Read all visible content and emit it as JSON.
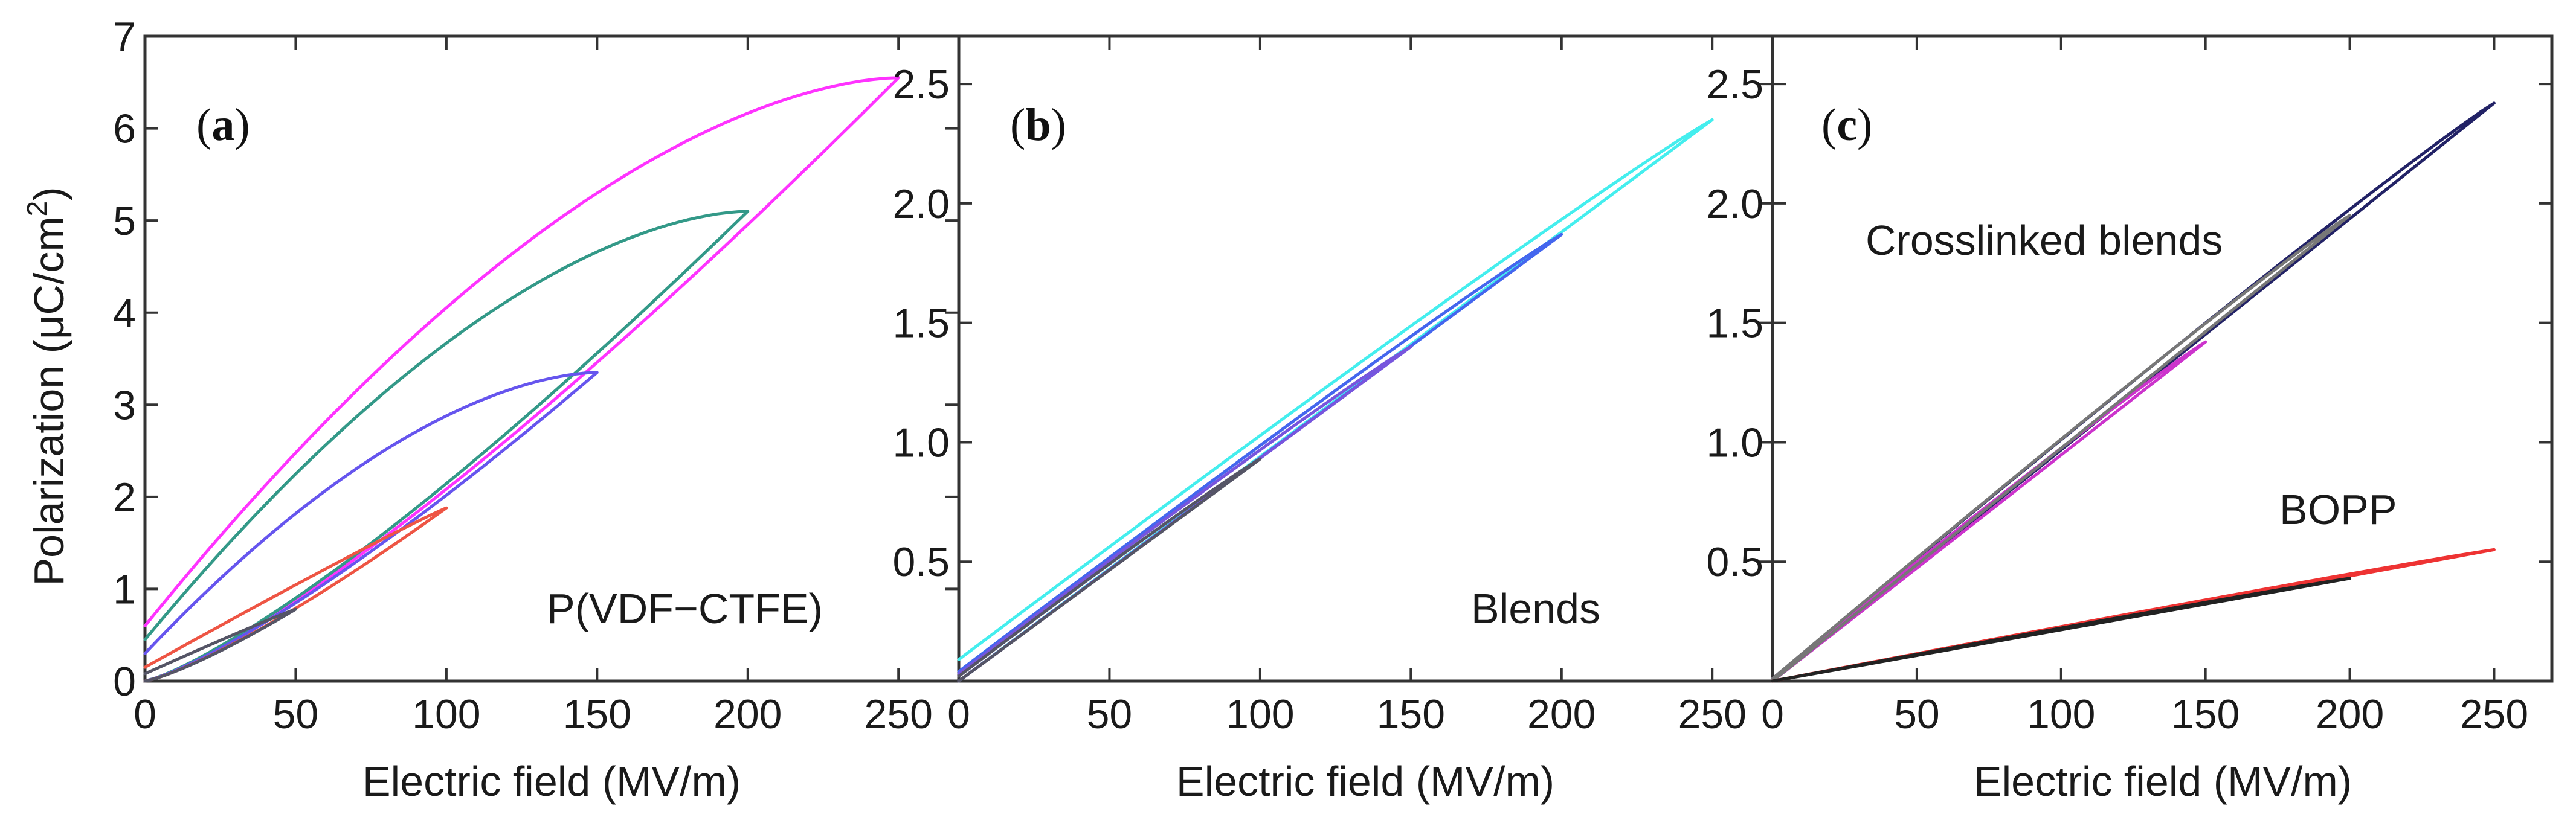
{
  "figure": {
    "ylabel_main": "Polarization (μC/cm",
    "ylabel_sup": "2",
    "ylabel_close": ")"
  },
  "chart_data": [
    {
      "type": "line",
      "panel": "a",
      "letter_open": "(",
      "letter": "a",
      "letter_close": ")",
      "note": "P(VDF−CTFE)",
      "xlabel": "Electric field (MV/m)",
      "ylabel": "Polarization (μC/cm2)",
      "xlim": [
        0,
        270
      ],
      "ylim": [
        0,
        7
      ],
      "xticks": [
        "0",
        "50",
        "100",
        "150",
        "200",
        "250"
      ],
      "yticks": [
        "0",
        "1",
        "2",
        "3",
        "4",
        "5",
        "6",
        "7"
      ],
      "series": [
        {
          "color": "#ff33ff",
          "max_field": 250,
          "p_max": 6.55,
          "p_rem": 0.6
        },
        {
          "color": "#339988",
          "max_field": 200,
          "p_max": 5.1,
          "p_rem": 0.45
        },
        {
          "color": "#6655ee",
          "max_field": 150,
          "p_max": 3.35,
          "p_rem": 0.3
        },
        {
          "color": "#ee5544",
          "max_field": 100,
          "p_max": 1.88,
          "p_rem": 0.15
        },
        {
          "color": "#555566",
          "max_field": 50,
          "p_max": 0.78,
          "p_rem": 0.08
        }
      ]
    },
    {
      "type": "line",
      "panel": "b",
      "letter_open": "(",
      "letter": "b",
      "letter_close": ")",
      "note": "Blends",
      "xlabel": "Electric field (MV/m)",
      "xlim": [
        0,
        270
      ],
      "ylim": [
        0,
        2.7
      ],
      "xticks": [
        "0",
        "50",
        "100",
        "150",
        "200",
        "250"
      ],
      "yticks": [
        "0.5",
        "1.0",
        "1.5",
        "2.0",
        "2.5"
      ],
      "series": [
        {
          "color": "#44eeee",
          "max_field": 250,
          "p_max": 2.35,
          "p_rem": 0.09
        },
        {
          "color": "#4466ee",
          "max_field": 200,
          "p_max": 1.87,
          "p_rem": 0.04
        },
        {
          "color": "#7755dd",
          "max_field": 150,
          "p_max": 1.4,
          "p_rem": 0.03
        },
        {
          "color": "#555566",
          "max_field": 100,
          "p_max": 0.93,
          "p_rem": 0.02
        }
      ]
    },
    {
      "type": "line",
      "panel": "c",
      "letter_open": "(",
      "letter": "c",
      "letter_close": ")",
      "note": "Crosslinked blends",
      "note2": "BOPP",
      "xlabel": "Electric field (MV/m)",
      "xlim": [
        0,
        270
      ],
      "ylim": [
        0,
        2.7
      ],
      "xticks": [
        "0",
        "50",
        "100",
        "150",
        "200",
        "250"
      ],
      "yticks": [
        "0.5",
        "1.0",
        "1.5",
        "2.0",
        "2.5"
      ],
      "series": [
        {
          "color": "#222266",
          "max_field": 250,
          "p_max": 2.42,
          "p_rem": 0.01
        },
        {
          "color": "#cc33cc",
          "max_field": 150,
          "p_max": 1.42,
          "p_rem": 0.01
        },
        {
          "color": "#777777",
          "max_field": 200,
          "p_max": 1.95,
          "p_rem": 0.01
        },
        {
          "color": "#ee3333",
          "max_field": 250,
          "p_max": 0.55,
          "p_rem": 0.0
        },
        {
          "color": "#222222",
          "max_field": 200,
          "p_max": 0.43,
          "p_rem": 0.0
        }
      ]
    }
  ]
}
